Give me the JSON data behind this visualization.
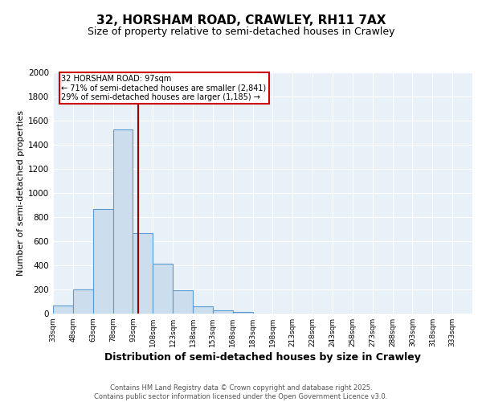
{
  "title1": "32, HORSHAM ROAD, CRAWLEY, RH11 7AX",
  "title2": "Size of property relative to semi-detached houses in Crawley",
  "xlabel": "Distribution of semi-detached houses by size in Crawley",
  "ylabel": "Number of semi-detached properties",
  "bin_edges": [
    33,
    48,
    63,
    78,
    93,
    108,
    123,
    138,
    153,
    168,
    183,
    198,
    213,
    228,
    243,
    258,
    273,
    288,
    303,
    318,
    333
  ],
  "bar_heights": [
    65,
    200,
    870,
    1530,
    670,
    415,
    195,
    60,
    25,
    15,
    0,
    0,
    0,
    0,
    0,
    0,
    0,
    0,
    0,
    0
  ],
  "bar_color": "#ccdded",
  "bar_edge_color": "#5b9bd5",
  "property_size": 97,
  "vline_color": "#990000",
  "annotation_text": "32 HORSHAM ROAD: 97sqm\n← 71% of semi-detached houses are smaller (2,841)\n29% of semi-detached houses are larger (1,185) →",
  "annotation_box_color": "#ffffff",
  "annotation_box_edge_color": "#cc0000",
  "ylim": [
    0,
    2000
  ],
  "yticks": [
    0,
    200,
    400,
    600,
    800,
    1000,
    1200,
    1400,
    1600,
    1800,
    2000
  ],
  "background_color": "#e8f0f8",
  "grid_color": "#ffffff",
  "footer_text": "Contains HM Land Registry data © Crown copyright and database right 2025.\nContains public sector information licensed under the Open Government Licence v3.0.",
  "title_fontsize": 11,
  "subtitle_fontsize": 9,
  "tick_label_fontsize": 6.5,
  "ylabel_fontsize": 8,
  "xlabel_fontsize": 9,
  "footer_fontsize": 6
}
